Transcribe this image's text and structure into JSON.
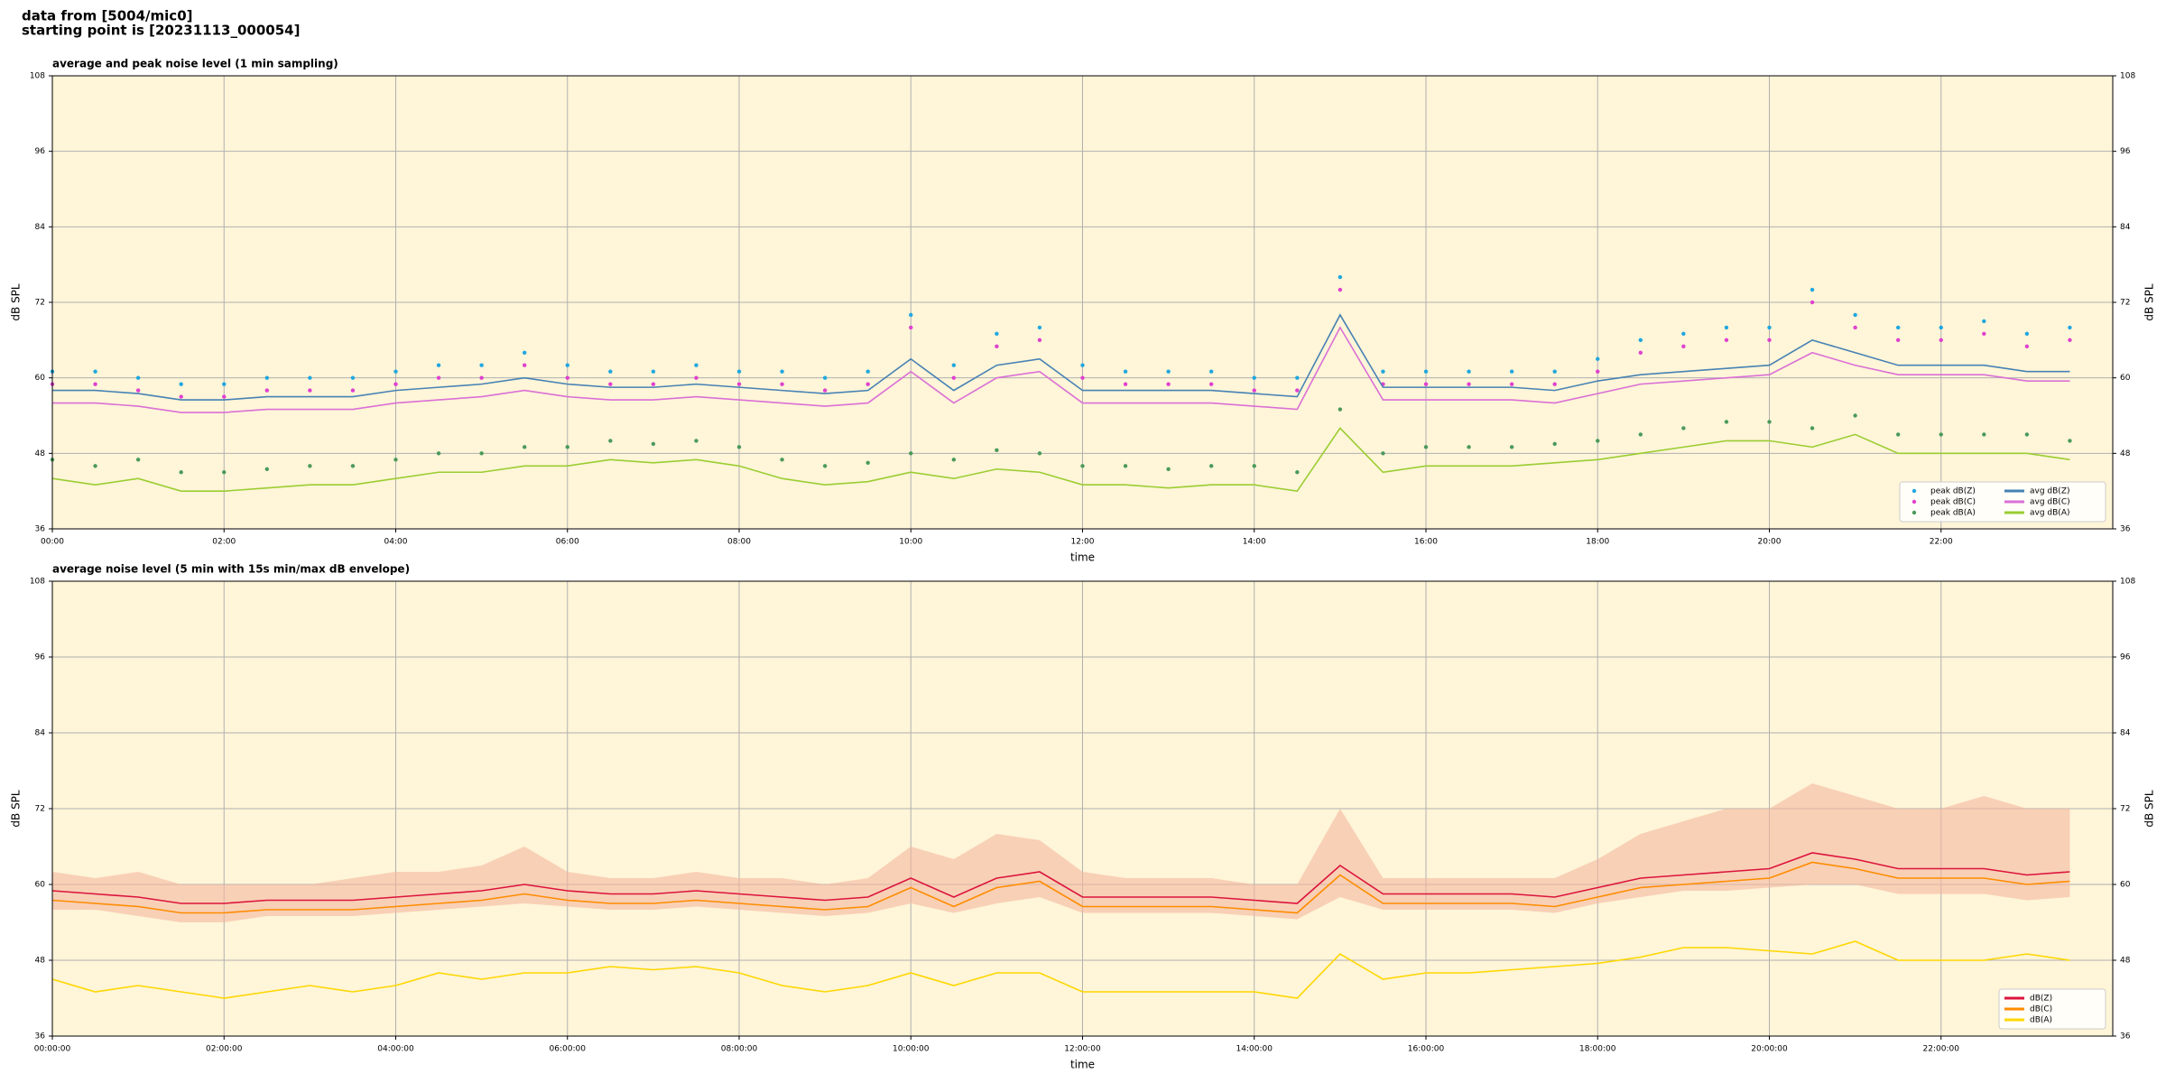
{
  "header": {
    "source": "data from [5004/mic0]",
    "start": "starting point is [20231113_000054]"
  },
  "chart_data": [
    {
      "type": "line",
      "title": "average and peak noise level (1 min sampling)",
      "x_label": "time",
      "y_label": "dB SPL",
      "xlim": [
        0,
        24
      ],
      "ylim": [
        36,
        108
      ],
      "xticks": [
        {
          "value": 0,
          "label": "00:00"
        },
        {
          "value": 2,
          "label": "02:00"
        },
        {
          "value": 4,
          "label": "04:00"
        },
        {
          "value": 6,
          "label": "06:00"
        },
        {
          "value": 8,
          "label": "08:00"
        },
        {
          "value": 10,
          "label": "10:00"
        },
        {
          "value": 12,
          "label": "12:00"
        },
        {
          "value": 14,
          "label": "14:00"
        },
        {
          "value": 16,
          "label": "16:00"
        },
        {
          "value": 18,
          "label": "18:00"
        },
        {
          "value": 20,
          "label": "20:00"
        },
        {
          "value": 22,
          "label": "22:00"
        }
      ],
      "yticks": [
        36,
        48,
        60,
        72,
        84,
        96,
        108
      ],
      "grid": true,
      "legend": "lower right",
      "legend_columns": 2,
      "x": [
        0,
        0.5,
        1,
        1.5,
        2,
        2.5,
        3,
        3.5,
        4,
        4.5,
        5,
        5.5,
        6,
        6.5,
        7,
        7.5,
        8,
        8.5,
        9,
        9.5,
        10,
        10.5,
        11,
        11.5,
        12,
        12.5,
        13,
        13.5,
        14,
        14.5,
        15,
        15.5,
        16,
        16.5,
        17,
        17.5,
        18,
        18.5,
        19,
        19.5,
        20,
        20.5,
        21,
        21.5,
        22,
        22.5,
        23,
        23.5
      ],
      "series": [
        {
          "name": "peak dB(Z)",
          "color": "#1fa7e0",
          "style": "dots",
          "values": [
            61,
            61,
            60,
            59,
            59,
            60,
            60,
            60,
            61,
            62,
            62,
            64,
            62,
            61,
            61,
            62,
            61,
            61,
            60,
            61,
            70,
            62,
            67,
            68,
            62,
            61,
            61,
            61,
            60,
            60,
            76,
            61,
            61,
            61,
            61,
            61,
            63,
            66,
            67,
            68,
            68,
            74,
            70,
            68,
            68,
            69,
            67,
            68
          ]
        },
        {
          "name": "peak dB(C)",
          "color": "#e040d0",
          "style": "dots",
          "values": [
            59,
            59,
            58,
            57,
            57,
            58,
            58,
            58,
            59,
            60,
            60,
            62,
            60,
            59,
            59,
            60,
            59,
            59,
            58,
            59,
            68,
            60,
            65,
            66,
            60,
            59,
            59,
            59,
            58,
            58,
            74,
            59,
            59,
            59,
            59,
            59,
            61,
            64,
            65,
            66,
            66,
            72,
            68,
            66,
            66,
            67,
            65,
            66
          ]
        },
        {
          "name": "peak dB(A)",
          "color": "#4a9a5a",
          "style": "dots",
          "values": [
            47,
            46,
            47,
            45,
            45,
            45.5,
            46,
            46,
            47,
            48,
            48,
            49,
            49,
            50,
            49.5,
            50,
            49,
            47,
            46,
            46.5,
            48,
            47,
            48.5,
            48,
            46,
            46,
            45.5,
            46,
            46,
            45,
            55,
            48,
            49,
            49,
            49,
            49.5,
            50,
            51,
            52,
            53,
            53,
            52,
            54,
            51,
            51,
            51,
            51,
            50
          ]
        },
        {
          "name": "avg dB(Z)",
          "color": "#4682b4",
          "style": "line",
          "values": [
            58,
            58,
            57.5,
            56.5,
            56.5,
            57,
            57,
            57,
            58,
            58.5,
            59,
            60,
            59,
            58.5,
            58.5,
            59,
            58.5,
            58,
            57.5,
            58,
            63,
            58,
            62,
            63,
            58,
            58,
            58,
            58,
            57.5,
            57,
            70,
            58.5,
            58.5,
            58.5,
            58.5,
            58,
            59.5,
            60.5,
            61,
            61.5,
            62,
            66,
            64,
            62,
            62,
            62,
            61,
            61
          ]
        },
        {
          "name": "avg dB(C)",
          "color": "#da70d6",
          "style": "line",
          "values": [
            56,
            56,
            55.5,
            54.5,
            54.5,
            55,
            55,
            55,
            56,
            56.5,
            57,
            58,
            57,
            56.5,
            56.5,
            57,
            56.5,
            56,
            55.5,
            56,
            61,
            56,
            60,
            61,
            56,
            56,
            56,
            56,
            55.5,
            55,
            68,
            56.5,
            56.5,
            56.5,
            56.5,
            56,
            57.5,
            59,
            59.5,
            60,
            60.5,
            64,
            62,
            60.5,
            60.5,
            60.5,
            59.5,
            59.5
          ]
        },
        {
          "name": "avg dB(A)",
          "color": "#9acd32",
          "style": "line",
          "values": [
            44,
            43,
            44,
            42,
            42,
            42.5,
            43,
            43,
            44,
            45,
            45,
            46,
            46,
            47,
            46.5,
            47,
            46,
            44,
            43,
            43.5,
            45,
            44,
            45.5,
            45,
            43,
            43,
            42.5,
            43,
            43,
            42,
            52,
            45,
            46,
            46,
            46,
            46.5,
            47,
            48,
            49,
            50,
            50,
            49,
            51,
            48,
            48,
            48,
            48,
            47
          ]
        }
      ]
    },
    {
      "type": "line",
      "title": "average noise level (5 min with 15s min/max dB envelope)",
      "x_label": "time",
      "y_label": "dB SPL",
      "xlim": [
        0,
        24
      ],
      "ylim": [
        36,
        108
      ],
      "xticks": [
        {
          "value": 0,
          "label": "00:00:00"
        },
        {
          "value": 2,
          "label": "02:00:00"
        },
        {
          "value": 4,
          "label": "04:00:00"
        },
        {
          "value": 6,
          "label": "06:00:00"
        },
        {
          "value": 8,
          "label": "08:00:00"
        },
        {
          "value": 10,
          "label": "10:00:00"
        },
        {
          "value": 12,
          "label": "12:00:00"
        },
        {
          "value": 14,
          "label": "14:00:00"
        },
        {
          "value": 16,
          "label": "16:00:00"
        },
        {
          "value": 18,
          "label": "18:00:00"
        },
        {
          "value": 20,
          "label": "20:00:00"
        },
        {
          "value": 22,
          "label": "22:00:00"
        }
      ],
      "yticks": [
        36,
        48,
        60,
        72,
        84,
        96,
        108
      ],
      "grid": true,
      "legend": "lower right",
      "legend_columns": 1,
      "x": [
        0,
        0.5,
        1,
        1.5,
        2,
        2.5,
        3,
        3.5,
        4,
        4.5,
        5,
        5.5,
        6,
        6.5,
        7,
        7.5,
        8,
        8.5,
        9,
        9.5,
        10,
        10.5,
        11,
        11.5,
        12,
        12.5,
        13,
        13.5,
        14,
        14.5,
        15,
        15.5,
        16,
        16.5,
        17,
        17.5,
        18,
        18.5,
        19,
        19.5,
        20,
        20.5,
        21,
        21.5,
        22,
        22.5,
        23,
        23.5
      ],
      "envelope": {
        "color": "#f4b8a0",
        "low": [
          56,
          56,
          55,
          54,
          54,
          55,
          55,
          55,
          55.5,
          56,
          56.5,
          57,
          56.5,
          56,
          56,
          56.5,
          56,
          55.5,
          55,
          55.5,
          57,
          55.5,
          57,
          58,
          55.5,
          55.5,
          55.5,
          55.5,
          55,
          54.5,
          58,
          56,
          56,
          56,
          56,
          55.5,
          57,
          58,
          59,
          59,
          59.5,
          60,
          60,
          58.5,
          58.5,
          58.5,
          57.5,
          58
        ],
        "high": [
          62,
          61,
          62,
          60,
          60,
          60,
          60,
          61,
          62,
          62,
          63,
          66,
          62,
          61,
          61,
          62,
          61,
          61,
          60,
          61,
          66,
          64,
          68,
          67,
          62,
          61,
          61,
          61,
          60,
          60,
          72,
          61,
          61,
          61,
          61,
          61,
          64,
          68,
          70,
          72,
          72,
          76,
          74,
          72,
          72,
          74,
          72,
          72
        ]
      },
      "series": [
        {
          "name": "dB(Z)",
          "color": "#dc143c",
          "style": "line",
          "values": [
            59,
            58.5,
            58,
            57,
            57,
            57.5,
            57.5,
            57.5,
            58,
            58.5,
            59,
            60,
            59,
            58.5,
            58.5,
            59,
            58.5,
            58,
            57.5,
            58,
            61,
            58,
            61,
            62,
            58,
            58,
            58,
            58,
            57.5,
            57,
            63,
            58.5,
            58.5,
            58.5,
            58.5,
            58,
            59.5,
            61,
            61.5,
            62,
            62.5,
            65,
            64,
            62.5,
            62.5,
            62.5,
            61.5,
            62
          ]
        },
        {
          "name": "dB(C)",
          "color": "#ff8c00",
          "style": "line",
          "values": [
            57.5,
            57,
            56.5,
            55.5,
            55.5,
            56,
            56,
            56,
            56.5,
            57,
            57.5,
            58.5,
            57.5,
            57,
            57,
            57.5,
            57,
            56.5,
            56,
            56.5,
            59.5,
            56.5,
            59.5,
            60.5,
            56.5,
            56.5,
            56.5,
            56.5,
            56,
            55.5,
            61.5,
            57,
            57,
            57,
            57,
            56.5,
            58,
            59.5,
            60,
            60.5,
            61,
            63.5,
            62.5,
            61,
            61,
            61,
            60,
            60.5
          ]
        },
        {
          "name": "dB(A)",
          "color": "#ffd700",
          "style": "line",
          "values": [
            45,
            43,
            44,
            43,
            42,
            43,
            44,
            43,
            44,
            46,
            45,
            46,
            46,
            47,
            46.5,
            47,
            46,
            44,
            43,
            44,
            46,
            44,
            46,
            46,
            43,
            43,
            43,
            43,
            43,
            42,
            49,
            45,
            46,
            46,
            46.5,
            47,
            47.5,
            48.5,
            50,
            50,
            49.5,
            49,
            51,
            48,
            48,
            48,
            49,
            48
          ]
        }
      ]
    }
  ]
}
